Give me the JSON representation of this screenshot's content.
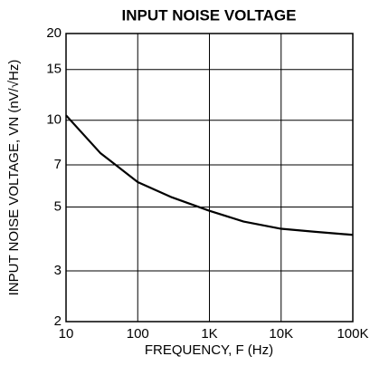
{
  "chart_data": {
    "type": "line",
    "title": "INPUT NOISE VOLTAGE",
    "xlabel": "FREQUENCY, F (Hz)",
    "ylabel": "INPUT NOISE VOLTAGE, VN (nV/√Hz)",
    "x": [
      10,
      30,
      100,
      300,
      1000,
      3000,
      10000,
      30000,
      100000
    ],
    "series": [
      {
        "name": "VN",
        "color": "#000000",
        "values": [
          10.4,
          7.7,
          6.1,
          5.4,
          4.85,
          4.45,
          4.2,
          4.1,
          4.0
        ]
      }
    ],
    "xlim": [
      10,
      100000
    ],
    "xticks": [
      10,
      100,
      {
        "value": 1000,
        "label": "1K"
      },
      {
        "value": 10000,
        "label": "10K"
      },
      {
        "value": 100000,
        "label": "100K"
      }
    ],
    "ylim": [
      2,
      20
    ],
    "yticks": [
      2,
      3,
      5,
      7,
      10,
      15,
      20
    ],
    "xscale": "log",
    "yscale": "log",
    "grid": true
  }
}
